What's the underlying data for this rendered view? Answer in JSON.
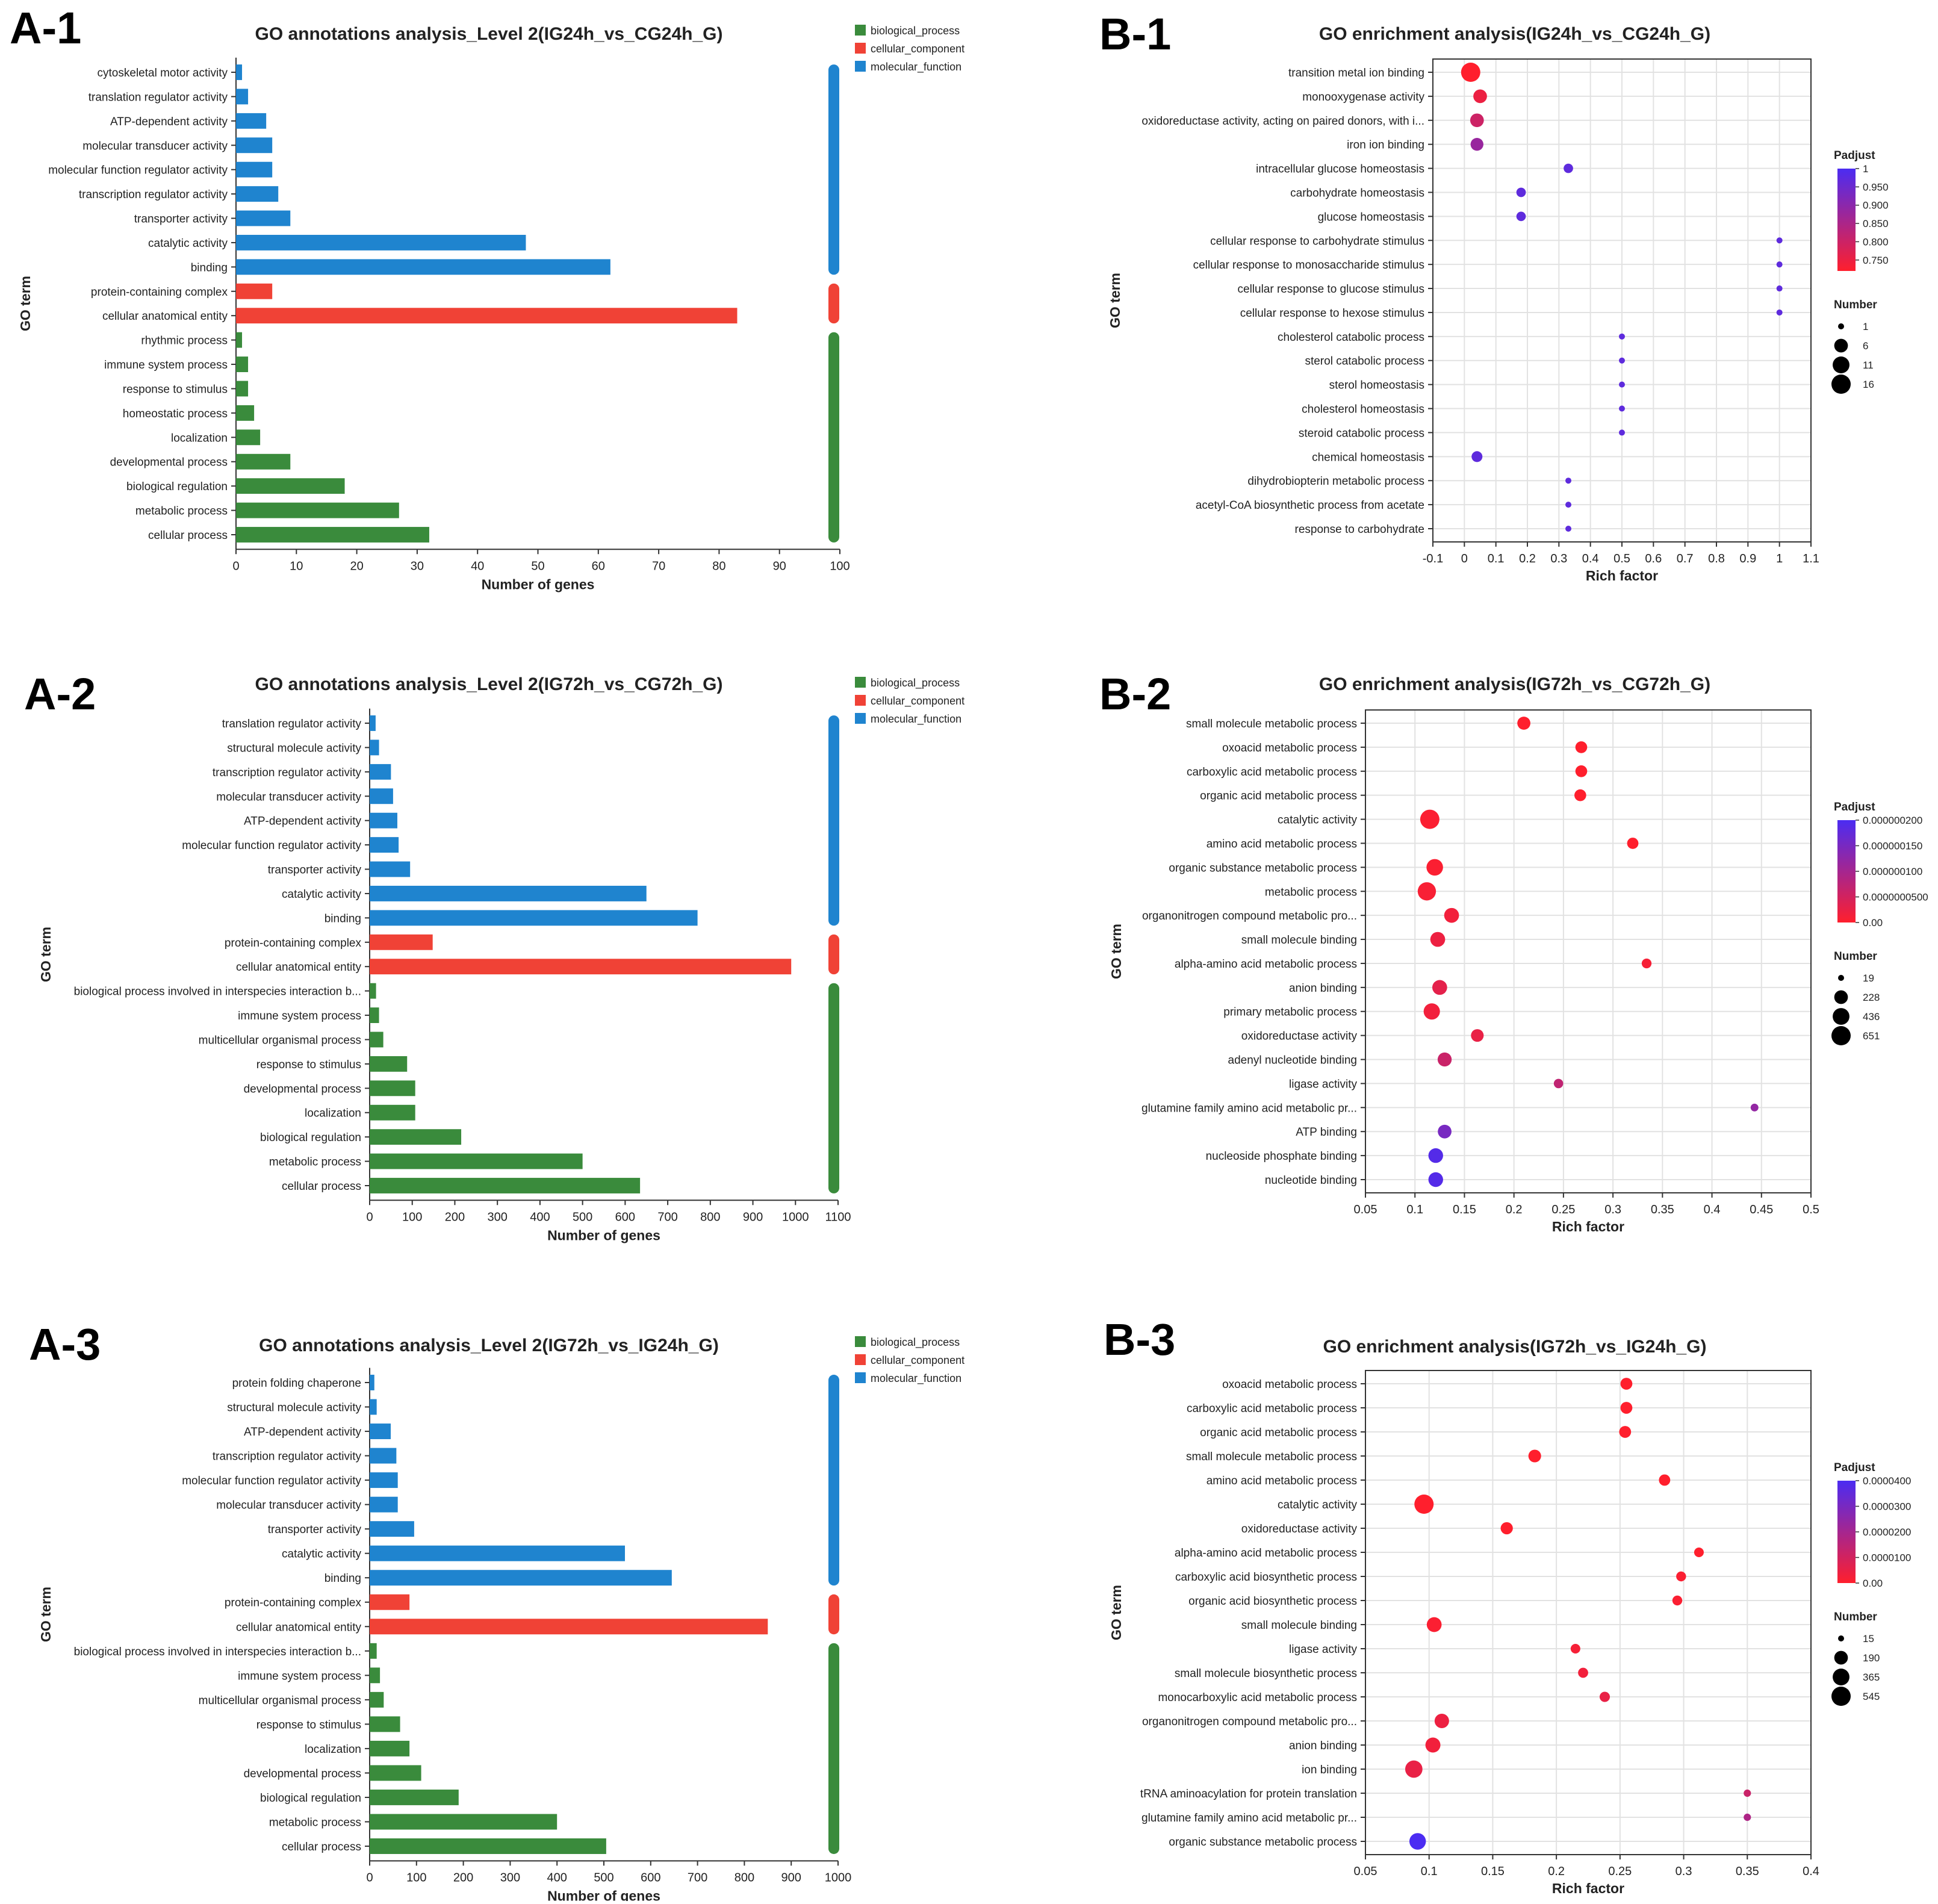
{
  "colors": {
    "biological_process": "#3a8b3c",
    "cellular_component": "#f04236",
    "molecular_function": "#1f84cf",
    "grid": "#e2e2e2",
    "axis": "#333333",
    "text": "#222222",
    "padjust_low": "#ff1f2d",
    "padjust_high": "#4b2cf2"
  },
  "panels": {
    "a1": {
      "letter": "A-1"
    },
    "a2": {
      "letter": "A-2"
    },
    "a3": {
      "letter": "A-3"
    },
    "b1": {
      "letter": "B-1"
    },
    "b2": {
      "letter": "B-2"
    },
    "b3": {
      "letter": "B-3"
    }
  },
  "chart_data": [
    {
      "id": "a1",
      "type": "bar",
      "orientation": "horizontal",
      "title": "GO annotations analysis_Level 2(IG24h_vs_CG24h_G)",
      "xlabel": "Number of genes",
      "ylabel": "GO term",
      "xlim": [
        0,
        100
      ],
      "xticks": [
        0,
        10,
        20,
        30,
        40,
        50,
        60,
        70,
        80,
        90,
        100
      ],
      "grid": false,
      "legend_position": "top-right",
      "legend": [
        "biological_process",
        "cellular_component",
        "molecular_function"
      ],
      "categories": [
        "cytoskeletal motor activity",
        "translation regulator activity",
        "ATP-dependent activity",
        "molecular transducer activity",
        "molecular function regulator activity",
        "transcription regulator activity",
        "transporter activity",
        "catalytic activity",
        "binding",
        "protein-containing complex",
        "cellular anatomical entity",
        "rhythmic process",
        "immune system process",
        "response to stimulus",
        "homeostatic process",
        "localization",
        "developmental process",
        "biological regulation",
        "metabolic process",
        "cellular process"
      ],
      "values": [
        1,
        2,
        5,
        6,
        6,
        7,
        9,
        48,
        62,
        6,
        83,
        1,
        2,
        2,
        3,
        4,
        9,
        18,
        27,
        32
      ],
      "groups": [
        "molecular_function",
        "molecular_function",
        "molecular_function",
        "molecular_function",
        "molecular_function",
        "molecular_function",
        "molecular_function",
        "molecular_function",
        "molecular_function",
        "cellular_component",
        "cellular_component",
        "biological_process",
        "biological_process",
        "biological_process",
        "biological_process",
        "biological_process",
        "biological_process",
        "biological_process",
        "biological_process",
        "biological_process"
      ]
    },
    {
      "id": "b1",
      "type": "scatter",
      "title": "GO enrichment analysis(IG24h_vs_CG24h_G)",
      "xlabel": "Rich factor",
      "ylabel": "GO term",
      "xlim": [
        -0.1,
        1.1
      ],
      "xticks": [
        "-0.1",
        "0",
        "0.1",
        "0.2",
        "0.3",
        "0.4",
        "0.5",
        "0.6",
        "0.7",
        "0.8",
        "0.9",
        "1",
        "1.1"
      ],
      "grid": true,
      "padjust_legend": {
        "title": "Padjust",
        "min": 0.72,
        "max": 1,
        "ticks": [
          "1",
          "0.950",
          "0.900",
          "0.850",
          "0.800",
          "0.750"
        ],
        "tick_values": [
          1,
          0.95,
          0.9,
          0.85,
          0.8,
          0.75
        ]
      },
      "size_legend": {
        "title": "Number",
        "values": [
          1,
          6,
          11,
          16
        ]
      },
      "categories": [
        "transition metal ion binding",
        "monooxygenase activity",
        "oxidoreductase activity, acting on paired donors, with i...",
        "iron ion binding",
        "intracellular glucose homeostasis",
        "carbohydrate homeostasis",
        "glucose homeostasis",
        "cellular response to carbohydrate stimulus",
        "cellular response to monosaccharide stimulus",
        "cellular response to glucose stimulus",
        "cellular response to hexose stimulus",
        "cholesterol catabolic process",
        "sterol catabolic process",
        "sterol homeostasis",
        "cholesterol homeostasis",
        "steroid catabolic process",
        "chemical homeostasis",
        "dihydrobiopterin metabolic process",
        "acetyl-CoA biosynthetic process from acetate",
        "response to carbohydrate"
      ],
      "x": [
        0.02,
        0.05,
        0.04,
        0.04,
        0.33,
        0.18,
        0.18,
        1.0,
        1.0,
        1.0,
        1.0,
        0.5,
        0.5,
        0.5,
        0.5,
        0.5,
        0.04,
        0.33,
        0.33,
        0.33
      ],
      "number": [
        16,
        6,
        6,
        5,
        2,
        2,
        2,
        1,
        1,
        1,
        1,
        1,
        1,
        1,
        1,
        1,
        3,
        1,
        1,
        1
      ],
      "padjust": [
        0.72,
        0.75,
        0.8,
        0.88,
        0.97,
        0.97,
        0.97,
        0.97,
        0.97,
        0.97,
        0.97,
        0.97,
        0.97,
        0.97,
        0.97,
        0.97,
        0.97,
        0.97,
        0.97,
        0.97
      ]
    },
    {
      "id": "a2",
      "type": "bar",
      "orientation": "horizontal",
      "title": "GO annotations analysis_Level 2(IG72h_vs_CG72h_G)",
      "xlabel": "Number of genes",
      "ylabel": "GO term",
      "xlim": [
        0,
        1100
      ],
      "xticks": [
        0,
        100,
        200,
        300,
        400,
        500,
        600,
        700,
        800,
        900,
        1000,
        1100
      ],
      "grid": false,
      "legend_position": "top-right",
      "legend": [
        "biological_process",
        "cellular_component",
        "molecular_function"
      ],
      "categories": [
        "translation regulator activity",
        "structural molecule activity",
        "transcription regulator activity",
        "molecular transducer activity",
        "ATP-dependent activity",
        "molecular function regulator activity",
        "transporter activity",
        "catalytic activity",
        "binding",
        "protein-containing complex",
        "cellular anatomical entity",
        "biological process involved in interspecies interaction b...",
        "immune system process",
        "multicellular organismal process",
        "response to stimulus",
        "developmental process",
        "localization",
        "biological regulation",
        "metabolic process",
        "cellular process"
      ],
      "values": [
        14,
        22,
        50,
        55,
        65,
        68,
        95,
        650,
        770,
        148,
        990,
        15,
        22,
        32,
        88,
        107,
        107,
        215,
        500,
        635
      ],
      "groups": [
        "molecular_function",
        "molecular_function",
        "molecular_function",
        "molecular_function",
        "molecular_function",
        "molecular_function",
        "molecular_function",
        "molecular_function",
        "molecular_function",
        "cellular_component",
        "cellular_component",
        "biological_process",
        "biological_process",
        "biological_process",
        "biological_process",
        "biological_process",
        "biological_process",
        "biological_process",
        "biological_process",
        "biological_process"
      ]
    },
    {
      "id": "b2",
      "type": "scatter",
      "title": "GO enrichment analysis(IG72h_vs_CG72h_G)",
      "xlabel": "Rich factor",
      "ylabel": "GO term",
      "xlim": [
        0.05,
        0.5
      ],
      "xticks": [
        "0.05",
        "0.1",
        "0.15",
        "0.2",
        "0.25",
        "0.3",
        "0.35",
        "0.4",
        "0.45",
        "0.5"
      ],
      "grid": true,
      "padjust_legend": {
        "title": "Padjust",
        "min": 0,
        "max": 2e-07,
        "ticks": [
          "0.000000200",
          "0.000000150",
          "0.000000100",
          "0.0000000500",
          "0.00"
        ],
        "tick_values": [
          2e-07,
          1.5e-07,
          1e-07,
          5e-08,
          0
        ]
      },
      "size_legend": {
        "title": "Number",
        "values": [
          19,
          228,
          436,
          651
        ]
      },
      "categories": [
        "small molecule metabolic process",
        "oxoacid metabolic process",
        "carboxylic acid metabolic process",
        "organic acid metabolic process",
        "catalytic activity",
        "amino acid metabolic process",
        "organic substance metabolic process",
        "metabolic process",
        "organonitrogen compound metabolic pro...",
        "small molecule binding",
        "alpha-amino acid metabolic process",
        "anion binding",
        "primary metabolic process",
        "oxidoreductase activity",
        "adenyl nucleotide binding",
        "ligase activity",
        "glutamine family amino acid metabolic pr...",
        "ATP binding",
        "nucleoside phosphate binding",
        "nucleotide binding"
      ],
      "x": [
        0.21,
        0.268,
        0.268,
        0.267,
        0.115,
        0.32,
        0.12,
        0.112,
        0.137,
        0.123,
        0.334,
        0.125,
        0.117,
        0.163,
        0.13,
        0.245,
        0.443,
        0.13,
        0.121,
        0.121
      ],
      "number": [
        200,
        140,
        140,
        140,
        651,
        120,
        420,
        560,
        300,
        300,
        70,
        300,
        400,
        180,
        250,
        60,
        30,
        230,
        290,
        290
      ],
      "padjust": [
        0,
        0,
        0,
        0,
        5e-09,
        0,
        5e-09,
        8e-09,
        1.5e-08,
        2e-08,
        1e-08,
        3e-08,
        1.5e-08,
        2.5e-08,
        6e-08,
        7e-08,
        1.2e-07,
        1.5e-07,
        1.9e-07,
        1.9e-07
      ]
    },
    {
      "id": "a3",
      "type": "bar",
      "orientation": "horizontal",
      "title": "GO annotations analysis_Level 2(IG72h_vs_IG24h_G)",
      "xlabel": "Number of genes",
      "ylabel": "GO term",
      "xlim": [
        0,
        1000
      ],
      "xticks": [
        0,
        100,
        200,
        300,
        400,
        500,
        600,
        700,
        800,
        900,
        1000
      ],
      "grid": false,
      "legend_position": "top-right",
      "legend": [
        "biological_process",
        "cellular_component",
        "molecular_function"
      ],
      "categories": [
        "protein folding chaperone",
        "structural molecule activity",
        "ATP-dependent activity",
        "transcription regulator activity",
        "molecular function regulator activity",
        "molecular transducer activity",
        "transporter activity",
        "catalytic activity",
        "binding",
        "protein-containing complex",
        "cellular anatomical entity",
        "biological process involved in interspecies interaction b...",
        "immune system process",
        "multicellular organismal process",
        "response to stimulus",
        "localization",
        "developmental process",
        "biological regulation",
        "metabolic process",
        "cellular process"
      ],
      "values": [
        10,
        15,
        45,
        57,
        60,
        60,
        95,
        545,
        645,
        85,
        850,
        15,
        22,
        30,
        65,
        85,
        110,
        190,
        400,
        505
      ],
      "groups": [
        "molecular_function",
        "molecular_function",
        "molecular_function",
        "molecular_function",
        "molecular_function",
        "molecular_function",
        "molecular_function",
        "molecular_function",
        "molecular_function",
        "cellular_component",
        "cellular_component",
        "biological_process",
        "biological_process",
        "biological_process",
        "biological_process",
        "biological_process",
        "biological_process",
        "biological_process",
        "biological_process",
        "biological_process"
      ]
    },
    {
      "id": "b3",
      "type": "scatter",
      "title": "GO enrichment analysis(IG72h_vs_IG24h_G)",
      "xlabel": "Rich factor",
      "ylabel": "GO term",
      "xlim": [
        0.05,
        0.4
      ],
      "xticks": [
        "0.05",
        "0.1",
        "0.15",
        "0.2",
        "0.25",
        "0.3",
        "0.35",
        "0.4"
      ],
      "grid": true,
      "padjust_legend": {
        "title": "Padjust",
        "min": 0,
        "max": 4e-05,
        "ticks": [
          "0.0000400",
          "0.0000300",
          "0.0000200",
          "0.0000100",
          "0.00"
        ],
        "tick_values": [
          4e-05,
          3e-05,
          2e-05,
          1e-05,
          0
        ]
      },
      "size_legend": {
        "title": "Number",
        "values": [
          15,
          190,
          365,
          545
        ]
      },
      "categories": [
        "oxoacid metabolic process",
        "carboxylic acid metabolic process",
        "organic acid metabolic process",
        "small molecule metabolic process",
        "amino acid metabolic process",
        "catalytic activity",
        "oxidoreductase activity",
        "alpha-amino acid metabolic process",
        "carboxylic acid biosynthetic process",
        "organic acid biosynthetic process",
        "small molecule binding",
        "ligase activity",
        "small molecule biosynthetic process",
        "monocarboxylic acid metabolic process",
        "organonitrogen compound metabolic pro...",
        "anion binding",
        "ion binding",
        "tRNA aminoacylation for protein translation",
        "glutamine family amino acid metabolic pr...",
        "organic substance metabolic process"
      ],
      "x": [
        0.255,
        0.255,
        0.254,
        0.183,
        0.285,
        0.096,
        0.161,
        0.312,
        0.298,
        0.295,
        0.104,
        0.215,
        0.221,
        0.238,
        0.11,
        0.103,
        0.088,
        0.35,
        0.35,
        0.091
      ],
      "number": [
        120,
        120,
        120,
        150,
        100,
        545,
        130,
        55,
        60,
        60,
        250,
        55,
        65,
        70,
        230,
        260,
        400,
        20,
        20,
        350
      ],
      "padjust": [
        0,
        0,
        0,
        0,
        0,
        0,
        0,
        0,
        1e-06,
        1e-06,
        1e-06,
        2e-06,
        3e-06,
        5e-06,
        4e-06,
        3e-06,
        5e-06,
        1.2e-05,
        1.8e-05,
        4e-05
      ]
    }
  ]
}
